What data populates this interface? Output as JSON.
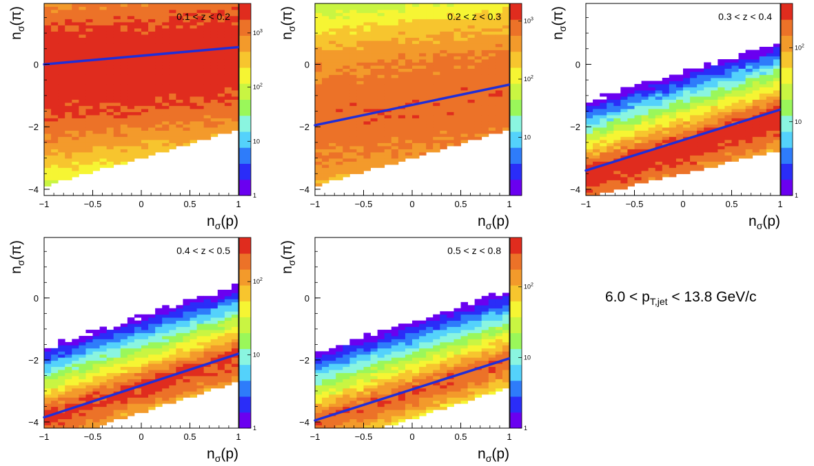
{
  "figure_note": {
    "prefix": "6.0 < p",
    "subscript": "T,jet",
    "suffix": " < 13.8 GeV/c"
  },
  "colors": {
    "fit_line": "#1f2ed8",
    "palette": [
      "#6a00f0",
      "#2a2df8",
      "#2e7cfa",
      "#54d2fb",
      "#8af5e0",
      "#9af75a",
      "#c9f542",
      "#f6f533",
      "#f7c52e",
      "#f39a2b",
      "#ec7228",
      "#e02c1e"
    ]
  },
  "chart_data": [
    {
      "type": "heatmap",
      "panel_label": "0.1 < z < 0.2",
      "xlabel_base": "n",
      "xlabel_sub": "σ",
      "xlabel_arg": "(p)",
      "ylabel_base": "n",
      "ylabel_sub": "σ",
      "ylabel_arg": "(π)",
      "xlim": [
        -1,
        1
      ],
      "ylim": [
        -4.2,
        1.95
      ],
      "x_ticks": [
        -1,
        -0.5,
        0,
        0.5,
        1
      ],
      "x_tick_labels": [
        "−1",
        "−0.5",
        "0",
        "0.5",
        "1"
      ],
      "y_ticks": [
        -4,
        -2,
        0
      ],
      "y_tick_labels": [
        "−4",
        "−2",
        "0"
      ],
      "z_scale": "log",
      "z_max": 3500,
      "z_ticks": [
        {
          "value": 1,
          "base": "1",
          "exp": ""
        },
        {
          "value": 10,
          "base": "10",
          "exp": ""
        },
        {
          "value": 100,
          "base": "10",
          "exp": "2"
        },
        {
          "value": 1000,
          "base": "10",
          "exp": "3"
        }
      ],
      "fit_line": {
        "x": [
          -1,
          1
        ],
        "y": [
          0.0,
          0.55
        ]
      },
      "band": {
        "a": 0.0,
        "b": 0.28,
        "sigma": 1.35,
        "peak": 3000,
        "low_slope": -4.05,
        "low_intercept": -3.1,
        "high_cut": 2.0
      }
    },
    {
      "type": "heatmap",
      "panel_label": "0.2 < z < 0.3",
      "xlabel_base": "n",
      "xlabel_sub": "σ",
      "xlabel_arg": "(p)",
      "ylabel_base": "n",
      "ylabel_sub": "σ",
      "ylabel_arg": "(π)",
      "xlim": [
        -1,
        1
      ],
      "ylim": [
        -4.2,
        1.95
      ],
      "x_ticks": [
        -1,
        -0.5,
        0,
        0.5,
        1
      ],
      "x_tick_labels": [
        "−1",
        "−0.5",
        "0",
        "0.5",
        "1"
      ],
      "y_ticks": [
        -4,
        -2,
        0
      ],
      "y_tick_labels": [
        "−4",
        "−2",
        "0"
      ],
      "z_scale": "log",
      "z_max": 2000,
      "z_ticks": [
        {
          "value": 10,
          "base": "10",
          "exp": ""
        },
        {
          "value": 100,
          "base": "10",
          "exp": "2"
        },
        {
          "value": 1000,
          "base": "10",
          "exp": "3"
        }
      ],
      "fit_line": {
        "x": [
          -1,
          1
        ],
        "y": [
          -1.95,
          -0.65
        ]
      },
      "band": {
        "a": -1.3,
        "b": 0.35,
        "sigma": 1.45,
        "peak": 900,
        "low_slope": -4.4,
        "low_intercept": -3.4,
        "high_cut": 2.0
      }
    },
    {
      "type": "heatmap",
      "panel_label": "0.3 < z < 0.4",
      "xlabel_base": "n",
      "xlabel_sub": "σ",
      "xlabel_arg": "(p)",
      "ylabel_base": "n",
      "ylabel_sub": "σ",
      "ylabel_arg": "(π)",
      "xlim": [
        -1,
        1
      ],
      "ylim": [
        -4.2,
        1.95
      ],
      "x_ticks": [
        -1,
        -0.5,
        0,
        0.5,
        1
      ],
      "x_tick_labels": [
        "−1",
        "−0.5",
        "0",
        "0.5",
        "1"
      ],
      "y_ticks": [
        -4,
        -2,
        0
      ],
      "y_tick_labels": [
        "−4",
        "−2",
        "0"
      ],
      "z_scale": "log",
      "z_max": 400,
      "z_ticks": [
        {
          "value": 1,
          "base": "1",
          "exp": ""
        },
        {
          "value": 10,
          "base": "10",
          "exp": ""
        },
        {
          "value": 100,
          "base": "10",
          "exp": "2"
        }
      ],
      "fit_line": {
        "x": [
          -1,
          1
        ],
        "y": [
          -3.4,
          -1.45
        ]
      },
      "band": {
        "a": -2.45,
        "b": 0.95,
        "sigma": 0.75,
        "peak": 350,
        "low_slope": 0.75,
        "low_intercept": -3.5,
        "high_cut": 0.85
      }
    },
    {
      "type": "heatmap",
      "panel_label": "0.4 < z < 0.5",
      "xlabel_base": "n",
      "xlabel_sub": "σ",
      "xlabel_arg": "(p)",
      "ylabel_base": "n",
      "ylabel_sub": "σ",
      "ylabel_arg": "(π)",
      "xlim": [
        -1,
        1
      ],
      "ylim": [
        -4.2,
        1.95
      ],
      "x_ticks": [
        -1,
        -0.5,
        0,
        0.5,
        1
      ],
      "x_tick_labels": [
        "−1",
        "−0.5",
        "0",
        "0.5",
        "1"
      ],
      "y_ticks": [
        -4,
        -2,
        0
      ],
      "y_tick_labels": [
        "−4",
        "−2",
        "0"
      ],
      "z_scale": "log",
      "z_max": 400,
      "z_ticks": [
        {
          "value": 1,
          "base": "1",
          "exp": ""
        },
        {
          "value": 10,
          "base": "10",
          "exp": ""
        },
        {
          "value": 100,
          "base": "10",
          "exp": "2"
        }
      ],
      "fit_line": {
        "x": [
          -1,
          1
        ],
        "y": [
          -3.85,
          -1.8
        ]
      },
      "band": {
        "a": -2.75,
        "b": 1.0,
        "sigma": 0.6,
        "peak": 300,
        "low_slope": 1.0,
        "low_intercept": -3.7,
        "high_cut": 0.85
      }
    },
    {
      "type": "heatmap",
      "panel_label": "0.5 < z < 0.8",
      "xlabel_base": "n",
      "xlabel_sub": "σ",
      "xlabel_arg": "(p)",
      "ylabel_base": "n",
      "ylabel_sub": "σ",
      "ylabel_arg": "(π)",
      "xlim": [
        -1,
        1
      ],
      "ylim": [
        -4.2,
        1.95
      ],
      "x_ticks": [
        -1,
        -0.5,
        0,
        0.5,
        1
      ],
      "x_tick_labels": [
        "−1",
        "−0.5",
        "0",
        "0.5",
        "1"
      ],
      "y_ticks": [
        -4,
        -2,
        0
      ],
      "y_tick_labels": [
        "−4",
        "−2",
        "0"
      ],
      "z_scale": "log",
      "z_max": 500,
      "z_ticks": [
        {
          "value": 1,
          "base": "1",
          "exp": ""
        },
        {
          "value": 10,
          "base": "10",
          "exp": ""
        },
        {
          "value": 100,
          "base": "10",
          "exp": "2"
        }
      ],
      "fit_line": {
        "x": [
          -1,
          1
        ],
        "y": [
          -3.95,
          -1.95
        ]
      },
      "band": {
        "a": -2.9,
        "b": 1.0,
        "sigma": 0.55,
        "peak": 280,
        "low_slope": 1.0,
        "low_intercept": -3.9,
        "high_cut": 0.85
      }
    }
  ]
}
